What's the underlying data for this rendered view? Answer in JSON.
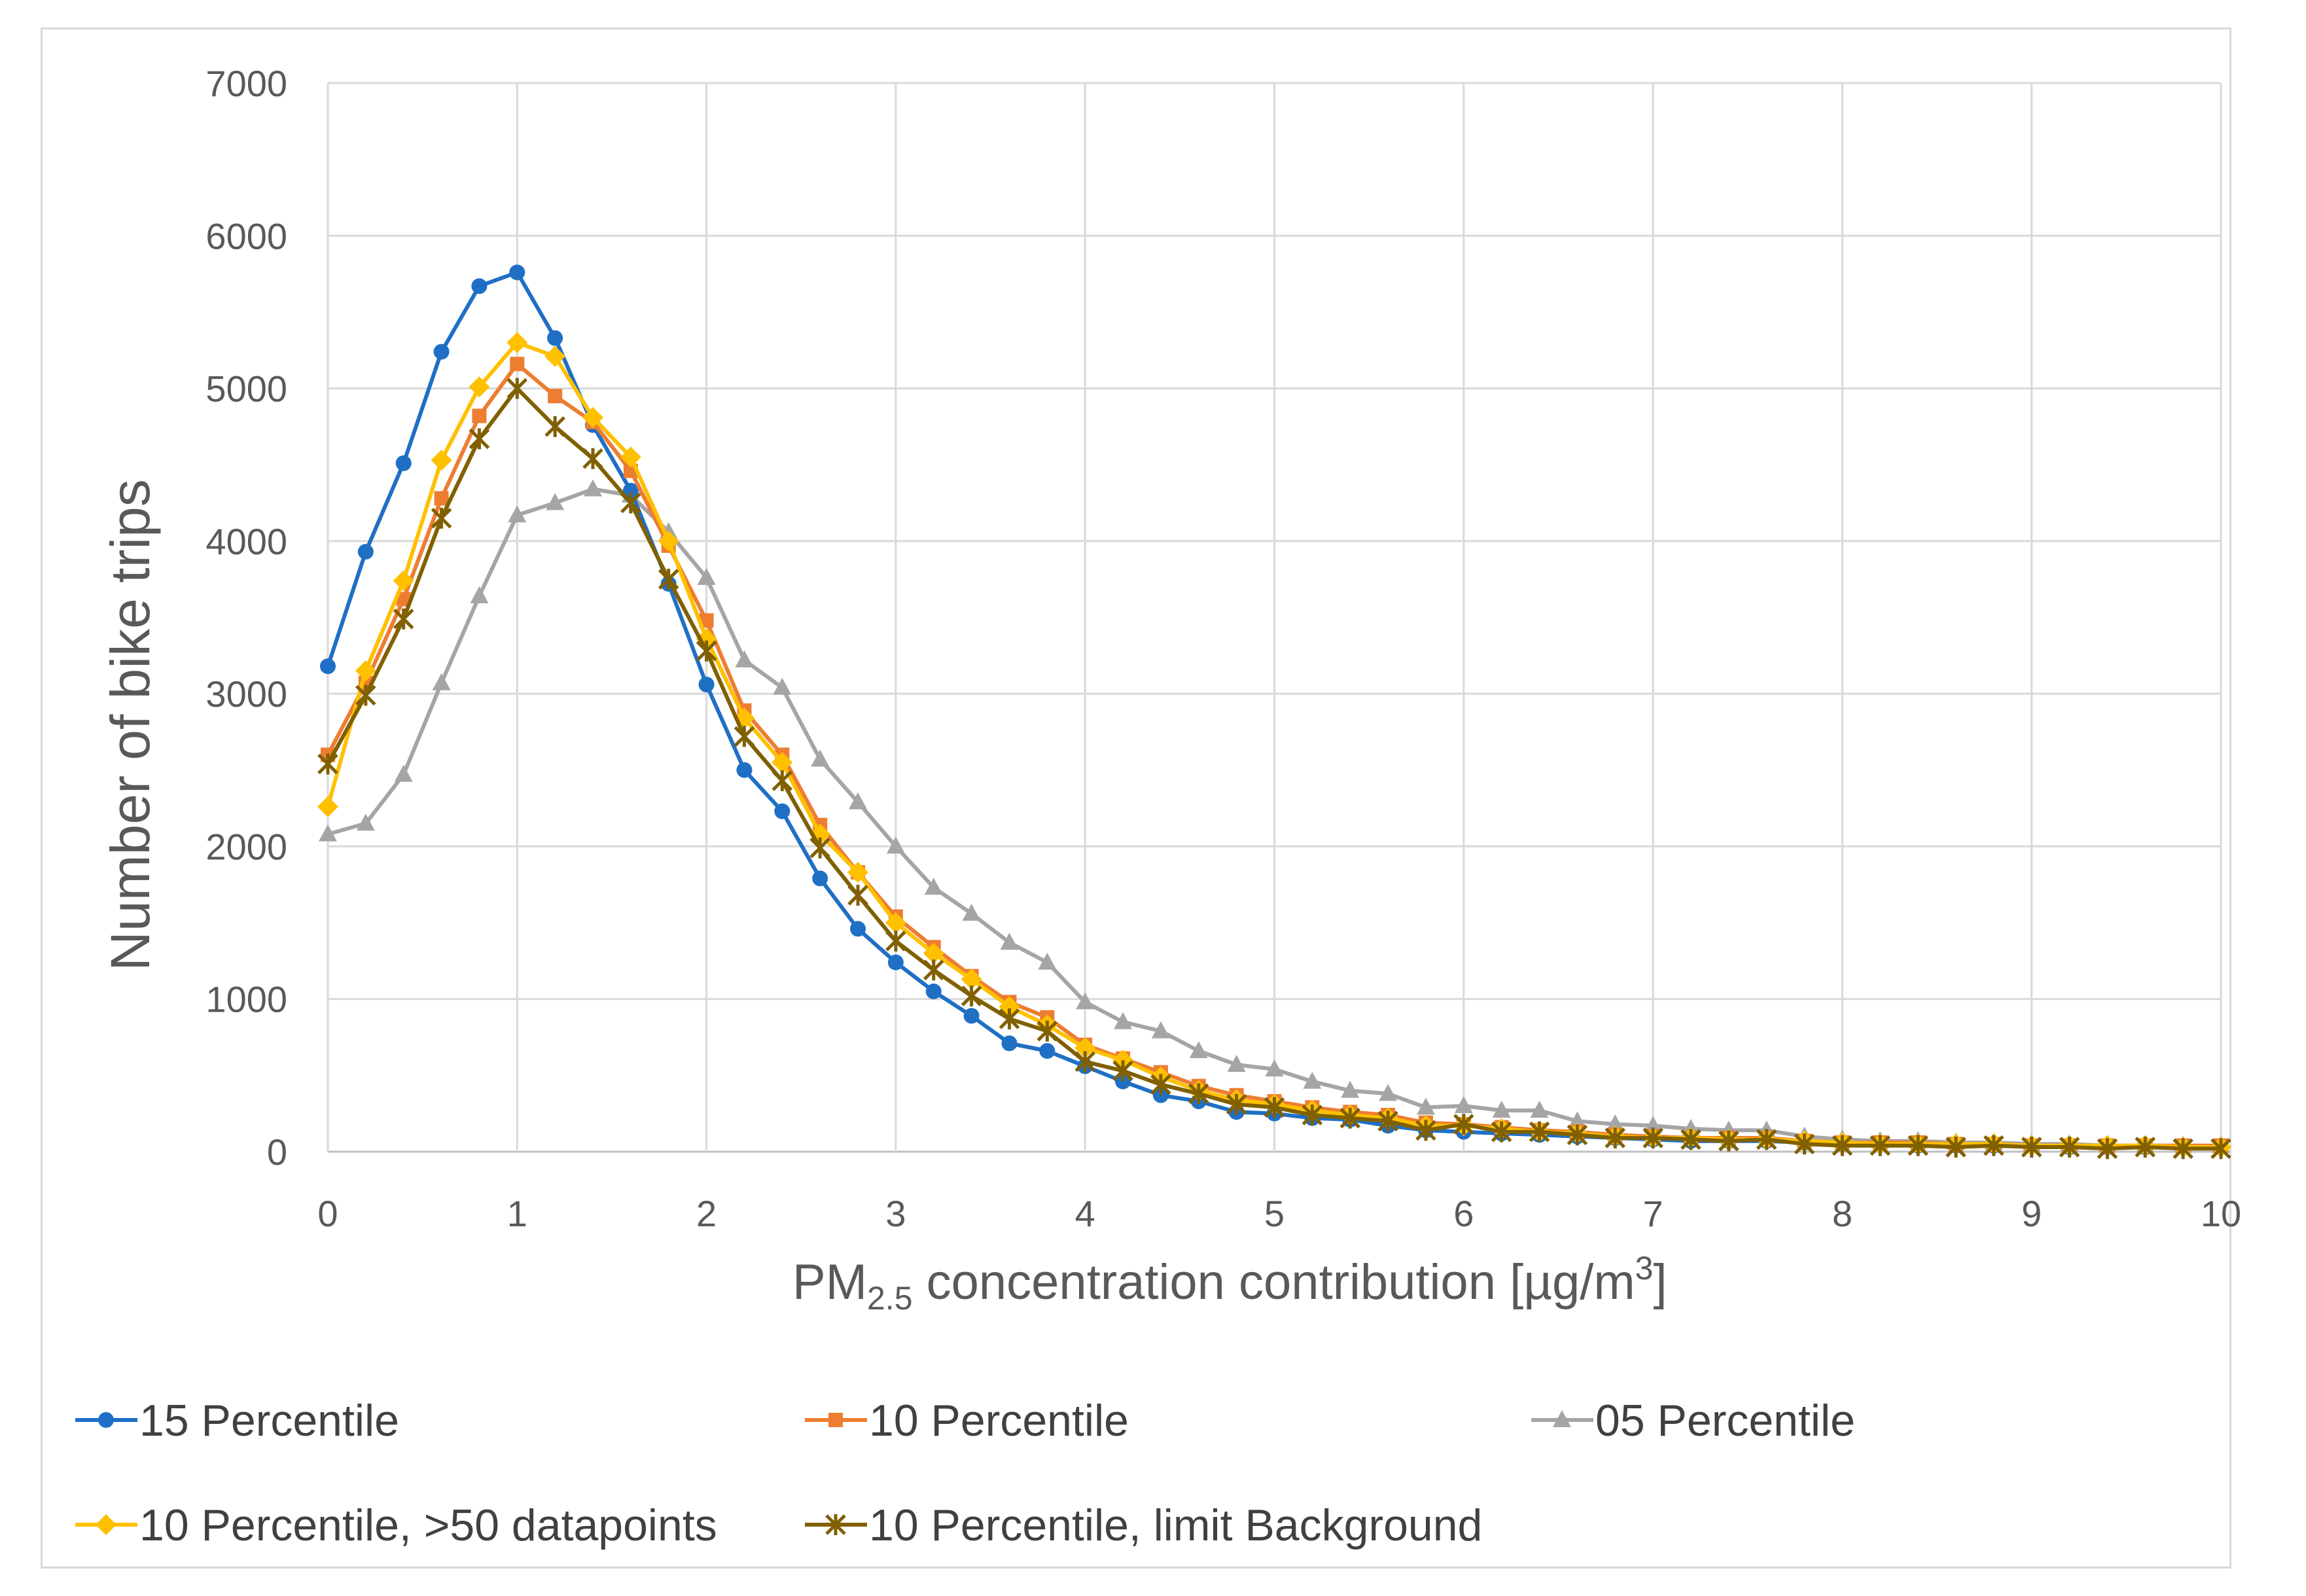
{
  "chart_data": {
    "type": "line",
    "title": "",
    "xlabel": {
      "main": "PM",
      "sub": "2.5",
      "rest": " concentration contribution [µg/m",
      "sup": "3",
      "end": "]"
    },
    "ylabel": "Number of bike trips",
    "xlim": [
      0,
      10
    ],
    "ylim": [
      0,
      7000
    ],
    "xticks": [
      0,
      1,
      2,
      3,
      4,
      5,
      6,
      7,
      8,
      9,
      10
    ],
    "yticks": [
      0,
      1000,
      2000,
      3000,
      4000,
      5000,
      6000,
      7000
    ],
    "grid": true,
    "legend_position": "bottom",
    "x": [
      0,
      0.2,
      0.4,
      0.6,
      0.8,
      1.0,
      1.2,
      1.4,
      1.6,
      1.8,
      2.0,
      2.2,
      2.4,
      2.6,
      2.8,
      3.0,
      3.2,
      3.4,
      3.6,
      3.8,
      4.0,
      4.2,
      4.4,
      4.6,
      4.8,
      5.0,
      5.2,
      5.4,
      5.6,
      5.8,
      6.0,
      6.2,
      6.4,
      6.6,
      6.8,
      7.0,
      7.2,
      7.4,
      7.6,
      7.8,
      8.0,
      8.2,
      8.4,
      8.6,
      8.8,
      9.0,
      9.2,
      9.4,
      9.6,
      9.8,
      10.0
    ],
    "series": [
      {
        "name": "15 Percentile",
        "color": "#1f6fc5",
        "marker": "circle",
        "values": [
          3180,
          3930,
          4510,
          5240,
          5670,
          5760,
          5330,
          4760,
          4330,
          3720,
          3060,
          2500,
          2230,
          1790,
          1460,
          1240,
          1050,
          890,
          710,
          660,
          560,
          460,
          370,
          330,
          260,
          250,
          220,
          210,
          170,
          140,
          130,
          120,
          110,
          100,
          90,
          80,
          70,
          70,
          70,
          60,
          50,
          50,
          40,
          40,
          40,
          40,
          30,
          30,
          30,
          30,
          30
        ]
      },
      {
        "name": "10 Percentile",
        "color": "#ed7d31",
        "marker": "square",
        "values": [
          2600,
          3070,
          3620,
          4280,
          4820,
          5160,
          4950,
          4780,
          4460,
          3970,
          3480,
          2890,
          2600,
          2140,
          1830,
          1540,
          1340,
          1150,
          980,
          880,
          700,
          610,
          520,
          430,
          370,
          330,
          290,
          260,
          240,
          190,
          180,
          160,
          140,
          130,
          110,
          100,
          90,
          90,
          90,
          70,
          60,
          60,
          60,
          50,
          50,
          40,
          40,
          40,
          40,
          40,
          40
        ]
      },
      {
        "name": "05 Percentile",
        "color": "#a5a5a5",
        "marker": "triangle",
        "values": [
          2080,
          2150,
          2470,
          3070,
          3640,
          4170,
          4250,
          4340,
          4300,
          4060,
          3760,
          3220,
          3040,
          2570,
          2290,
          2000,
          1730,
          1560,
          1370,
          1240,
          980,
          850,
          790,
          660,
          570,
          540,
          460,
          400,
          380,
          290,
          300,
          270,
          270,
          200,
          180,
          170,
          150,
          140,
          140,
          100,
          80,
          70,
          70,
          60,
          60,
          50,
          50,
          40,
          40,
          40,
          40
        ]
      },
      {
        "name": "10 Percentile, >50 datapoints",
        "color": "#ffc000",
        "marker": "diamond",
        "values": [
          2260,
          3150,
          3740,
          4530,
          5010,
          5300,
          5210,
          4810,
          4550,
          4000,
          3360,
          2840,
          2550,
          2080,
          1830,
          1500,
          1300,
          1130,
          950,
          830,
          680,
          600,
          490,
          400,
          340,
          310,
          270,
          240,
          220,
          170,
          170,
          150,
          130,
          120,
          100,
          90,
          90,
          80,
          80,
          70,
          60,
          50,
          50,
          50,
          50,
          40,
          40,
          40,
          40,
          30,
          30
        ]
      },
      {
        "name": "10 Percentile, limit Background",
        "color": "#806000",
        "marker": "star",
        "values": [
          2540,
          2990,
          3490,
          4150,
          4670,
          5000,
          4750,
          4540,
          4250,
          3750,
          3280,
          2720,
          2430,
          1990,
          1680,
          1380,
          1190,
          1020,
          870,
          790,
          590,
          530,
          440,
          380,
          310,
          290,
          240,
          220,
          200,
          140,
          180,
          130,
          130,
          110,
          90,
          90,
          80,
          70,
          80,
          50,
          40,
          40,
          40,
          30,
          40,
          30,
          30,
          20,
          30,
          20,
          20
        ]
      }
    ]
  }
}
